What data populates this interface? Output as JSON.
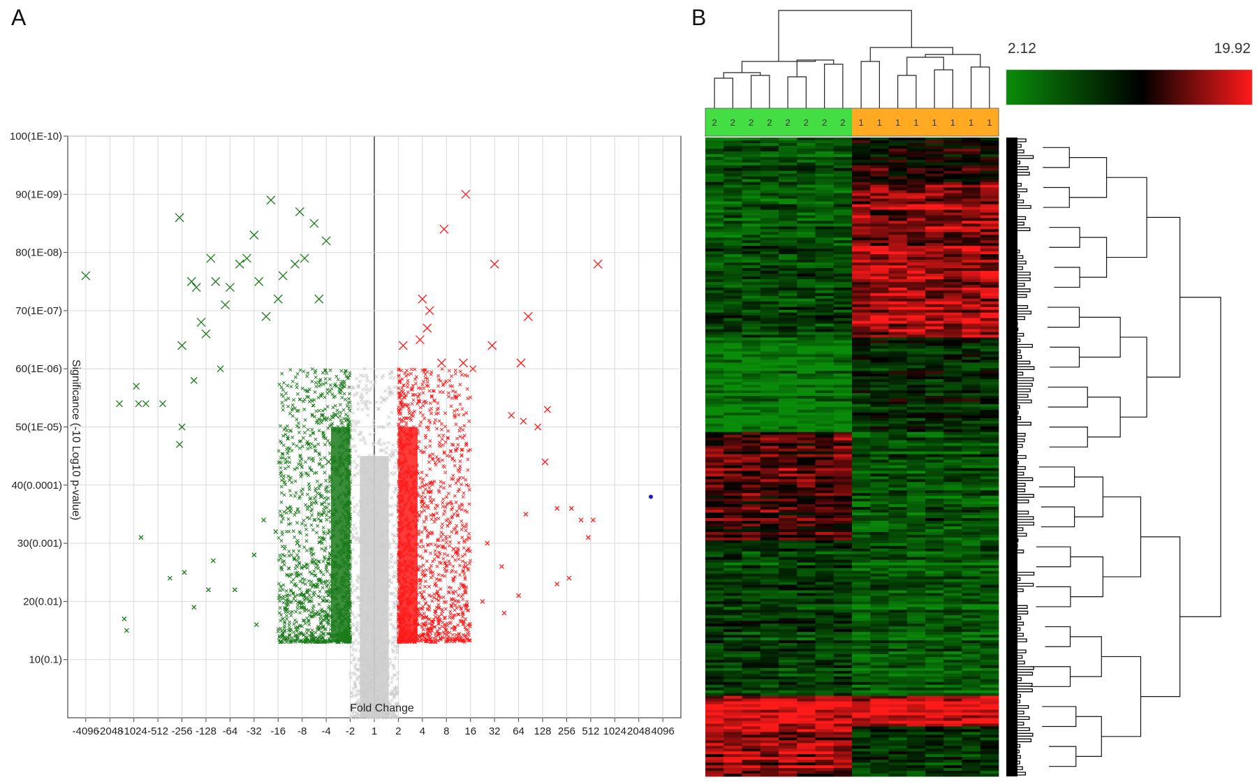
{
  "panel_labels": {
    "a": "A",
    "b": "B"
  },
  "chart_data": [
    {
      "panel": "A",
      "type": "scatter",
      "title": "",
      "xlabel": "Fold Change",
      "ylabel": "Significance (-10 Log10 p-value)",
      "x_scale": "log2 fold change (signed)",
      "x_ticks": [
        "-4096",
        "-2048",
        "-1024",
        "-512",
        "-256",
        "-128",
        "-64",
        "-32",
        "-16",
        "-8",
        "-4",
        "-2",
        "1",
        "2",
        "4",
        "8",
        "16",
        "32",
        "64",
        "128",
        "256",
        "512",
        "1024",
        "2048",
        "4096"
      ],
      "y_ticks": [
        "10(0.1)",
        "20(0.01)",
        "30(0.001)",
        "40(0.0001)",
        "50(1E-05)",
        "60(1E-06)",
        "70(1E-07)",
        "80(1E-08)",
        "90(1E-09)",
        "100(1E-10)"
      ],
      "ylim": [
        0,
        100
      ],
      "grid": true,
      "colors": {
        "down": "#1a7a1a",
        "up": "#ff1a1a",
        "ns": "#cccccc",
        "outlier": "#1a1acc"
      },
      "series": [
        {
          "group": "down-regulated",
          "color": "#1a7a1a",
          "points": [
            [
              -12.0,
              76
            ],
            [
              -9.5,
              54
            ],
            [
              -9.8,
              54
            ],
            [
              -10.6,
              54
            ],
            [
              -9.9,
              57
            ],
            [
              -8.8,
              54
            ],
            [
              -8.1,
              86
            ],
            [
              -8.1,
              47
            ],
            [
              -8.0,
              50
            ],
            [
              -8.0,
              64
            ],
            [
              -7.6,
              75
            ],
            [
              -7.5,
              58
            ],
            [
              -7.4,
              74
            ],
            [
              -7.2,
              68
            ],
            [
              -7.0,
              66
            ],
            [
              -6.8,
              79
            ],
            [
              -6.6,
              75
            ],
            [
              -6.4,
              60
            ],
            [
              -6.2,
              71
            ],
            [
              -6.0,
              74
            ],
            [
              -5.6,
              78
            ],
            [
              -5.3,
              79
            ],
            [
              -5.0,
              83
            ],
            [
              -4.8,
              75
            ],
            [
              -4.5,
              69
            ],
            [
              -4.3,
              89
            ],
            [
              -4.0,
              72
            ],
            [
              -3.8,
              76
            ],
            [
              -3.3,
              78
            ],
            [
              -3.1,
              87
            ],
            [
              -2.9,
              79
            ],
            [
              -2.5,
              85
            ],
            [
              -2.3,
              72
            ],
            [
              -2.0,
              82
            ],
            [
              -9.7,
              31
            ],
            [
              -8.5,
              24
            ],
            [
              -7.9,
              25
            ],
            [
              -7.5,
              19
            ],
            [
              -6.9,
              22
            ],
            [
              -6.7,
              27
            ],
            [
              -5.8,
              22
            ],
            [
              -5.0,
              28
            ],
            [
              -4.6,
              34
            ],
            [
              -4.1,
              32
            ],
            [
              -3.6,
              36
            ],
            [
              -3.2,
              30
            ],
            [
              -2.9,
              26
            ],
            [
              -2.2,
              38
            ],
            [
              -1.9,
              44
            ],
            [
              -1.6,
              52
            ],
            [
              -4.9,
              16
            ],
            [
              -10.3,
              15
            ],
            [
              -10.4,
              17
            ]
          ]
        },
        {
          "group": "up-regulated",
          "color": "#ff1a1a",
          "points": [
            [
              3.8,
              90
            ],
            [
              9.3,
              78
            ],
            [
              2.9,
              84
            ],
            [
              5.0,
              78
            ],
            [
              6.4,
              69
            ],
            [
              2.0,
              72
            ],
            [
              2.3,
              70
            ],
            [
              2.2,
              67
            ],
            [
              1.9,
              65
            ],
            [
              1.2,
              64
            ],
            [
              2.8,
              61
            ],
            [
              3.7,
              61
            ],
            [
              4.1,
              60
            ],
            [
              4.9,
              64
            ],
            [
              6.1,
              61
            ],
            [
              5.7,
              52
            ],
            [
              6.2,
              51
            ],
            [
              7.2,
              53
            ],
            [
              6.8,
              50
            ],
            [
              7.1,
              44
            ],
            [
              6.3,
              35
            ],
            [
              7.6,
              36
            ],
            [
              8.2,
              36
            ],
            [
              8.6,
              34
            ],
            [
              8.9,
              31
            ],
            [
              9.1,
              34
            ],
            [
              7.6,
              23
            ],
            [
              8.1,
              24
            ],
            [
              4.7,
              30
            ],
            [
              5.3,
              26
            ],
            [
              6.0,
              21
            ],
            [
              3.3,
              29
            ],
            [
              3.8,
              26
            ],
            [
              4.5,
              20
            ],
            [
              5.4,
              18
            ]
          ]
        },
        {
          "group": "outlier",
          "color": "#1a1acc",
          "points": [
            [
              11.5,
              38
            ]
          ]
        }
      ],
      "density_bands": [
        {
          "group": "down-regulated",
          "x_range": [
            -4.0,
            -1.0
          ],
          "y_range": [
            13,
            60
          ]
        },
        {
          "group": "up-regulated",
          "x_range": [
            1.0,
            4.0
          ],
          "y_range": [
            13,
            60
          ]
        },
        {
          "group": "not-significant",
          "x_range": [
            -1.0,
            1.0
          ],
          "y_range": [
            0,
            60
          ]
        }
      ]
    },
    {
      "panel": "B",
      "type": "heatmap",
      "colorbar": {
        "min_label": "2.12",
        "max_label": "19.92",
        "low": "#0a8c0a",
        "mid": "#000000",
        "high": "#ff1a1a"
      },
      "column_labels": [
        "2",
        "2",
        "2",
        "2",
        "2",
        "2",
        "2",
        "2",
        "1",
        "1",
        "1",
        "1",
        "1",
        "1",
        "1",
        "1"
      ],
      "column_groups": {
        "2": "#44dd44",
        "1": "#ffaa22"
      },
      "row_blocks": [
        {
          "rows": [
            0.0,
            0.07
          ],
          "group2": 0.25,
          "group1": 0.55
        },
        {
          "rows": [
            0.07,
            0.16
          ],
          "group2": 0.2,
          "group1": 0.8
        },
        {
          "rows": [
            0.16,
            0.31
          ],
          "group2": 0.3,
          "group1": 0.85
        },
        {
          "rows": [
            0.31,
            0.46
          ],
          "group2": 0.05,
          "group1": 0.4
        },
        {
          "rows": [
            0.46,
            0.63
          ],
          "group2": 0.7,
          "group1": 0.25
        },
        {
          "rows": [
            0.63,
            0.87
          ],
          "group2": 0.3,
          "group1": 0.18
        },
        {
          "rows": [
            0.87,
            0.92
          ],
          "group2": 0.95,
          "group1": 0.95
        },
        {
          "rows": [
            0.92,
            1.0
          ],
          "group2": 0.8,
          "group1": 0.35
        }
      ]
    }
  ]
}
